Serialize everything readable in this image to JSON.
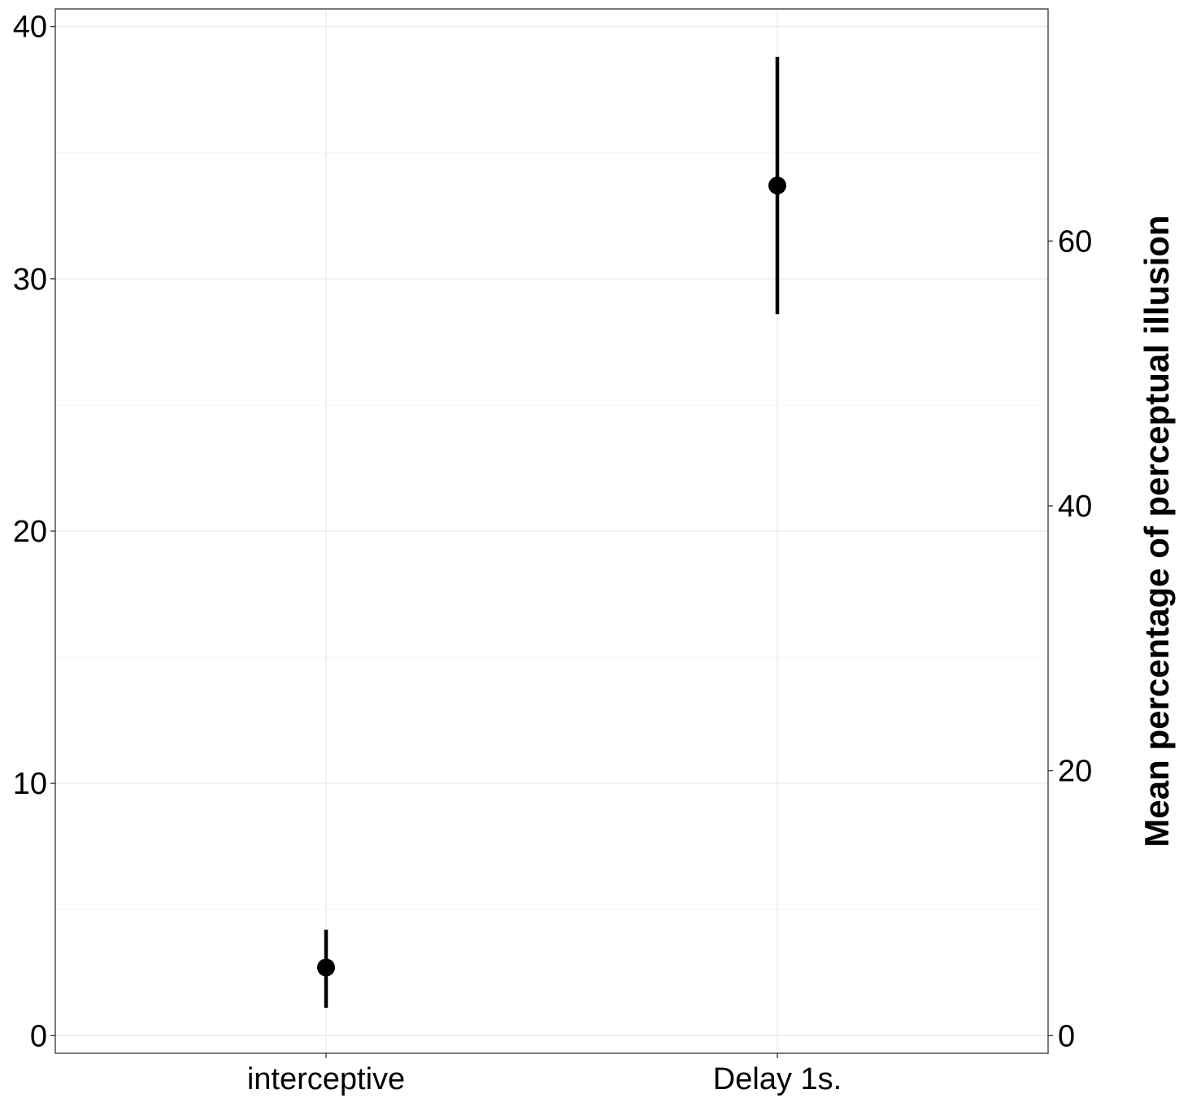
{
  "chart_data": {
    "type": "scatter",
    "categories": [
      "interceptive",
      "Delay 1s."
    ],
    "series": [
      {
        "points": [
          {
            "category": "interceptive",
            "y": 2.7,
            "ymin": 1.1,
            "ymax": 4.2
          },
          {
            "category": "Delay 1s.",
            "y": 33.7,
            "ymin": 28.6,
            "ymax": 38.8
          }
        ]
      }
    ],
    "ylim": [
      -0.7,
      40.7
    ],
    "yticks": [
      0,
      10,
      20,
      30,
      40
    ],
    "ytick_labels": [
      "0",
      "10",
      "20",
      "30",
      "40"
    ],
    "y2_ticks": [
      0,
      20,
      40,
      60
    ],
    "y2_tick_labels": [
      "0",
      "20",
      "40",
      "60"
    ],
    "y2_ratio": 1.9047619,
    "ylabel_right": "Mean percentage of perceptual illusion",
    "xlabel": "",
    "ylabel": "",
    "grid": true,
    "colors": {
      "point": "#000000",
      "grid_major": "#ebebeb",
      "grid_minor": "#f5f5f5",
      "panel_border": "#333333"
    }
  }
}
